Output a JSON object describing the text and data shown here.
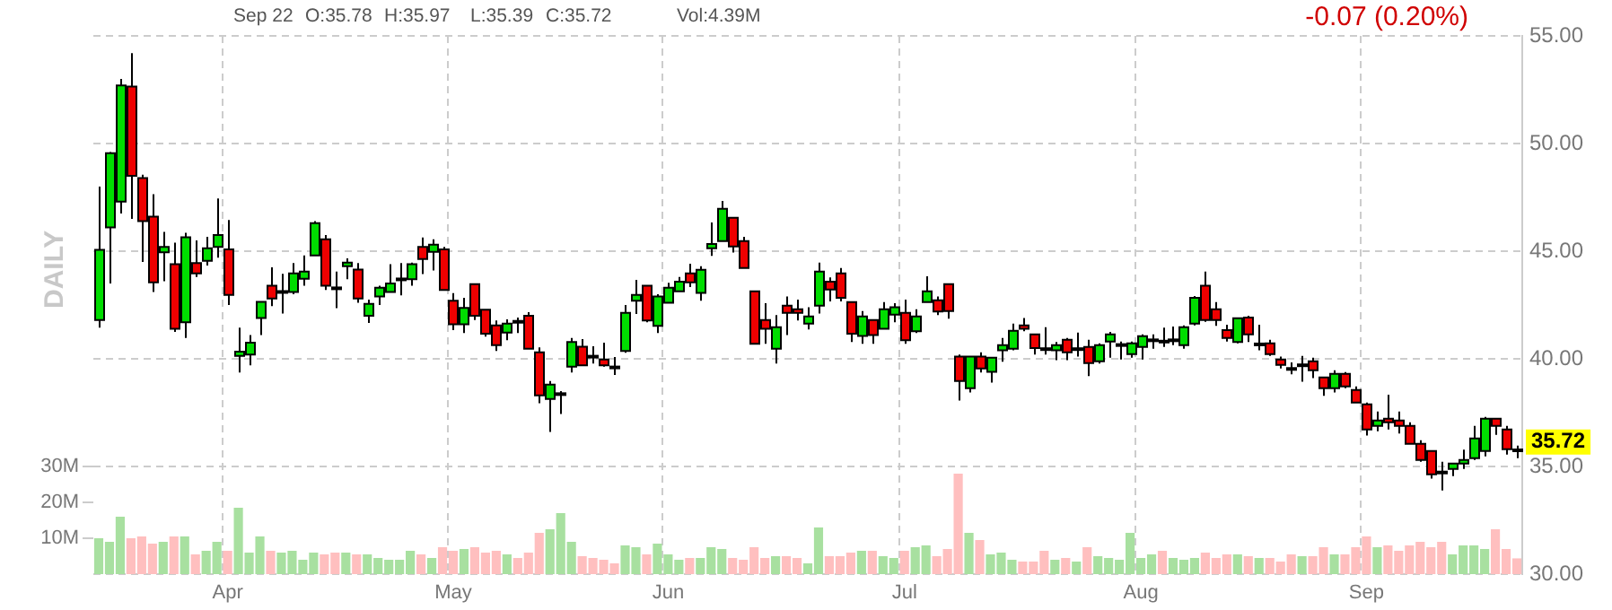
{
  "chart_data": {
    "type": "candlestick",
    "categories": [
      null,
      null,
      null,
      null,
      null,
      null,
      null,
      null,
      null,
      null,
      null,
      null,
      "Apr",
      null,
      null,
      null,
      null,
      null,
      null,
      null,
      null,
      null,
      null,
      null,
      null,
      null,
      null,
      null,
      null,
      null,
      null,
      null,
      null,
      "May",
      null,
      null,
      null,
      null,
      null,
      null,
      null,
      null,
      null,
      null,
      null,
      null,
      null,
      null,
      null,
      null,
      null,
      null,
      null,
      "Jun",
      null,
      null,
      null,
      null,
      null,
      null,
      null,
      null,
      null,
      null,
      null,
      null,
      null,
      null,
      null,
      null,
      null,
      null,
      null,
      null,
      null,
      "Jul",
      null,
      null,
      null,
      null,
      null,
      null,
      null,
      null,
      null,
      null,
      null,
      null,
      null,
      null,
      null,
      null,
      null,
      null,
      null,
      null,
      null,
      "Aug",
      null,
      null,
      null,
      null,
      null,
      null,
      null,
      null,
      null,
      null,
      null,
      null,
      null,
      null,
      null,
      null,
      null,
      null,
      null,
      null,
      "Sep",
      null,
      null,
      null,
      null,
      null,
      null,
      null,
      null,
      null,
      null,
      null,
      null,
      null,
      null
    ],
    "series": [
      {
        "ohlc": [
          [
            41.8,
            48,
            41.45,
            45.06
          ],
          [
            46.1,
            49.6,
            43.5,
            49.55
          ],
          [
            47.3,
            53,
            46.75,
            52.7
          ],
          [
            52.65,
            54.2,
            46.5,
            48.5
          ],
          [
            48.4,
            48.55,
            44.5,
            46.4
          ],
          [
            46.6,
            47.65,
            43.1,
            43.55
          ],
          [
            44.95,
            45.9,
            43.6,
            45.2
          ],
          [
            44.4,
            45.4,
            41.25,
            41.4
          ],
          [
            41.7,
            45.85,
            40.97,
            45.65
          ],
          [
            44.45,
            45.5,
            43.8,
            43.97
          ],
          [
            44.55,
            45.67,
            44.33,
            45.14
          ],
          [
            45.2,
            47.45,
            44.7,
            45.75
          ],
          [
            45.08,
            46.45,
            42.5,
            42.97
          ],
          [
            40.14,
            41.45,
            39.36,
            40.33
          ],
          [
            40.2,
            41.1,
            39.7,
            40.75
          ],
          [
            41.9,
            42.65,
            41.1,
            42.65
          ],
          [
            43.4,
            44.25,
            42.45,
            42.8
          ],
          [
            43.08,
            43.95,
            42.1,
            43.13
          ],
          [
            43.1,
            44.45,
            43,
            43.97
          ],
          [
            43.72,
            44.8,
            43.4,
            44.05
          ],
          [
            44.8,
            46.4,
            44.8,
            46.3
          ],
          [
            45.55,
            45.75,
            43.2,
            43.4
          ],
          [
            43.3,
            44.05,
            42.35,
            43.25
          ],
          [
            44.3,
            44.67,
            43.7,
            44.47
          ],
          [
            44.15,
            44.45,
            42.6,
            42.8
          ],
          [
            42,
            42.75,
            41.67,
            42.55
          ],
          [
            42.9,
            43.4,
            42.5,
            43.3
          ],
          [
            43.1,
            44.4,
            43.1,
            43.5
          ],
          [
            43.68,
            44.45,
            42.95,
            43.7
          ],
          [
            43.7,
            44.47,
            43.4,
            44.4
          ],
          [
            45.2,
            45.64,
            43.94,
            44.64
          ],
          [
            44.97,
            45.55,
            44.1,
            45.3
          ],
          [
            45.08,
            45.2,
            43.2,
            43.2
          ],
          [
            42.7,
            43.05,
            41.33,
            41.6
          ],
          [
            41.6,
            42.83,
            41.2,
            42.36
          ],
          [
            43.47,
            43.47,
            41.8,
            42
          ],
          [
            42.28,
            42.28,
            41.03,
            41.17
          ],
          [
            41.55,
            41.78,
            40.36,
            40.64
          ],
          [
            41.22,
            41.83,
            40.86,
            41.64
          ],
          [
            41.74,
            41.92,
            41.2,
            41.7
          ],
          [
            42,
            42.17,
            40.47,
            40.47
          ],
          [
            40.3,
            40.53,
            37.94,
            38.3
          ],
          [
            38.14,
            38.97,
            36.6,
            38.8
          ],
          [
            38.34,
            38.5,
            37.44,
            38.38
          ],
          [
            39.64,
            40.97,
            39.36,
            40.78
          ],
          [
            40.56,
            40.92,
            39.7,
            39.7
          ],
          [
            40.12,
            40.58,
            39.78,
            40.08
          ],
          [
            39.97,
            40.75,
            39.64,
            39.7
          ],
          [
            39.62,
            40.08,
            39.25,
            39.58
          ],
          [
            40.36,
            42.5,
            40.28,
            42.14
          ],
          [
            42.7,
            43.67,
            42.08,
            42.97
          ],
          [
            43.4,
            43.4,
            41.7,
            41.78
          ],
          [
            41.53,
            43,
            41.2,
            42.9
          ],
          [
            42.6,
            43.53,
            42.6,
            43.3
          ],
          [
            43.14,
            43.8,
            43.14,
            43.58
          ],
          [
            43.97,
            44.42,
            43.33,
            43.55
          ],
          [
            43.06,
            44.3,
            42.7,
            44.14
          ],
          [
            45.14,
            46.33,
            44.78,
            45.33
          ],
          [
            45.47,
            47.33,
            45.47,
            46.97
          ],
          [
            46.55,
            46.55,
            44.94,
            45.22
          ],
          [
            45.47,
            45.67,
            44.22,
            44.22
          ],
          [
            43.14,
            43.14,
            40.7,
            40.7
          ],
          [
            41.8,
            42.58,
            40.7,
            41.4
          ],
          [
            40.47,
            42.03,
            39.78,
            41.47
          ],
          [
            42.47,
            42.9,
            41.1,
            42.14
          ],
          [
            42.3,
            42.75,
            41.78,
            42.14
          ],
          [
            41.64,
            42.4,
            41.36,
            41.97
          ],
          [
            42.47,
            44.47,
            42.1,
            44.05
          ],
          [
            43.58,
            43.78,
            42.67,
            43.22
          ],
          [
            43.97,
            44.22,
            42.67,
            42.83
          ],
          [
            42.64,
            42.64,
            40.78,
            41.17
          ],
          [
            41.06,
            42.22,
            40.7,
            41.97
          ],
          [
            41.8,
            41.8,
            40.7,
            41.1
          ],
          [
            41.4,
            42.64,
            41.4,
            42.3
          ],
          [
            42.05,
            42.58,
            41.7,
            42.4
          ],
          [
            42.14,
            42.75,
            40.7,
            40.86
          ],
          [
            41.28,
            42.3,
            41.2,
            41.97
          ],
          [
            42.64,
            43.83,
            42.64,
            43.14
          ],
          [
            42.72,
            42.9,
            42.03,
            42.2
          ],
          [
            43.47,
            43.47,
            41.86,
            42.22
          ],
          [
            40.1,
            40.2,
            38.06,
            38.97
          ],
          [
            38.64,
            40.1,
            38.44,
            40.1
          ],
          [
            40.1,
            40.3,
            39.36,
            39.55
          ],
          [
            39.4,
            40.05,
            38.9,
            40.05
          ],
          [
            40.4,
            40.97,
            39.86,
            40.64
          ],
          [
            40.47,
            41.64,
            40.4,
            41.3
          ],
          [
            41.55,
            41.9,
            41.28,
            41.4
          ],
          [
            41.14,
            41.14,
            40.2,
            40.5
          ],
          [
            40.47,
            41.47,
            40.2,
            40.43
          ],
          [
            40.4,
            40.78,
            39.94,
            40.64
          ],
          [
            40.89,
            40.97,
            39.94,
            40.3
          ],
          [
            40.43,
            41.22,
            40.1,
            40.47
          ],
          [
            40.55,
            40.89,
            39.2,
            39.8
          ],
          [
            39.89,
            40.72,
            39.78,
            40.64
          ],
          [
            40.8,
            41.25,
            40.05,
            41.14
          ],
          [
            40.62,
            40.8,
            39.97,
            40.66
          ],
          [
            40.22,
            40.8,
            40.05,
            40.72
          ],
          [
            40.55,
            41.14,
            39.97,
            41.05
          ],
          [
            40.84,
            41.14,
            40.47,
            40.88
          ],
          [
            40.82,
            41.45,
            40.55,
            40.78
          ],
          [
            40.84,
            41.5,
            40.64,
            40.88
          ],
          [
            40.64,
            41.55,
            40.47,
            41.47
          ],
          [
            41.64,
            42.92,
            41.55,
            42.83
          ],
          [
            43.4,
            44.05,
            41.72,
            41.8
          ],
          [
            42.3,
            42.64,
            41.53,
            41.8
          ],
          [
            41.33,
            41.58,
            40.8,
            40.97
          ],
          [
            40.78,
            41.89,
            40.72,
            41.89
          ],
          [
            41.92,
            42,
            40.78,
            41.14
          ],
          [
            40.65,
            41.58,
            40.4,
            40.69
          ],
          [
            40.72,
            40.89,
            40.14,
            40.22
          ],
          [
            39.97,
            40.1,
            39.55,
            39.72
          ],
          [
            39.55,
            39.83,
            39.28,
            39.51
          ],
          [
            39.68,
            40.14,
            38.94,
            39.72
          ],
          [
            39.89,
            40.05,
            39.1,
            39.47
          ],
          [
            39.14,
            39.14,
            38.28,
            38.64
          ],
          [
            38.64,
            39.47,
            38.44,
            39.3
          ],
          [
            39.3,
            39.39,
            38.64,
            38.72
          ],
          [
            38.55,
            38.72,
            37.97,
            37.97
          ],
          [
            37.89,
            37.97,
            36.44,
            36.72
          ],
          [
            36.89,
            37.55,
            36.64,
            37.14
          ],
          [
            37.22,
            38.33,
            36.72,
            37.05
          ],
          [
            37.14,
            37.55,
            36.53,
            36.89
          ],
          [
            36.89,
            37.05,
            36.05,
            36.05
          ],
          [
            36.05,
            36.22,
            35.22,
            35.3
          ],
          [
            35.72,
            35.72,
            34.44,
            34.64
          ],
          [
            34.74,
            35.22,
            33.89,
            34.7
          ],
          [
            34.89,
            35.14,
            34.55,
            35.14
          ],
          [
            35.14,
            35.78,
            34.89,
            35.3
          ],
          [
            35.39,
            36.89,
            35.3,
            36.3
          ],
          [
            35.72,
            37.3,
            35.47,
            37.22
          ],
          [
            37.22,
            37.22,
            36.47,
            36.89
          ],
          [
            36.72,
            36.89,
            35.55,
            35.8
          ],
          [
            35.78,
            35.97,
            35.39,
            35.72
          ]
        ],
        "colors": [
          "#00dd00",
          "#00dd00",
          "#00dd00",
          "#ee0000",
          "#ee0000",
          "#ee0000",
          "#00dd00",
          "#ee0000",
          "#00dd00",
          "#ee0000",
          "#00dd00",
          "#00dd00",
          "#ee0000",
          "#00dd00",
          "#00dd00",
          "#00dd00",
          "#ee0000",
          "#00dd00",
          "#00dd00",
          "#00dd00",
          "#00dd00",
          "#ee0000",
          "#ee0000",
          "#00dd00",
          "#ee0000",
          "#00dd00",
          "#00dd00",
          "#00dd00",
          "#00dd00",
          "#00dd00",
          "#ee0000",
          "#00dd00",
          "#ee0000",
          "#ee0000",
          "#00dd00",
          "#ee0000",
          "#ee0000",
          "#ee0000",
          "#00dd00",
          "#ee0000",
          "#ee0000",
          "#ee0000",
          "#00dd00",
          "#00dd00",
          "#00dd00",
          "#ee0000",
          "#ee0000",
          "#ee0000",
          "#ee0000",
          "#00dd00",
          "#00dd00",
          "#ee0000",
          "#00dd00",
          "#00dd00",
          "#00dd00",
          "#ee0000",
          "#00dd00",
          "#00dd00",
          "#00dd00",
          "#ee0000",
          "#ee0000",
          "#ee0000",
          "#ee0000",
          "#00dd00",
          "#ee0000",
          "#ee0000",
          "#00dd00",
          "#00dd00",
          "#ee0000",
          "#ee0000",
          "#ee0000",
          "#00dd00",
          "#ee0000",
          "#00dd00",
          "#00dd00",
          "#ee0000",
          "#00dd00",
          "#00dd00",
          "#ee0000",
          "#ee0000",
          "#ee0000",
          "#00dd00",
          "#ee0000",
          "#00dd00",
          "#00dd00",
          "#00dd00",
          "#ee0000",
          "#ee0000",
          "#ee0000",
          "#00dd00",
          "#ee0000",
          "#00dd00",
          "#ee0000",
          "#00dd00",
          "#00dd00",
          "#00dd00",
          "#00dd00",
          "#00dd00",
          "#00dd00",
          "#ee0000",
          "#00dd00",
          "#00dd00",
          "#00dd00",
          "#ee0000",
          "#ee0000",
          "#ee0000",
          "#00dd00",
          "#ee0000",
          "#00dd00",
          "#ee0000",
          "#ee0000",
          "#ee0000",
          "#00dd00",
          "#ee0000",
          "#ee0000",
          "#00dd00",
          "#ee0000",
          "#ee0000",
          "#ee0000",
          "#00dd00",
          "#ee0000",
          "#ee0000",
          "#ee0000",
          "#ee0000",
          "#ee0000",
          "#ee0000",
          "#00dd00",
          "#00dd00",
          "#00dd00",
          "#00dd00",
          "#ee0000",
          "#ee0000",
          "#ee0000"
        ]
      },
      {
        "type": "bar",
        "axis": "y2",
        "values": [
          10,
          9,
          16,
          10,
          10.5,
          8.5,
          9,
          10.5,
          10.5,
          5.5,
          6.5,
          9,
          6.5,
          18.5,
          6,
          10.5,
          6.5,
          6,
          6.5,
          4,
          6,
          5.5,
          6,
          6,
          5.5,
          5.5,
          4.5,
          4,
          4,
          6.5,
          5.5,
          4.5,
          7.5,
          6.5,
          7,
          7.5,
          6,
          6.5,
          5.5,
          4.5,
          6,
          11.5,
          12.5,
          17,
          9,
          5,
          4.5,
          4,
          3,
          8,
          7.5,
          5.5,
          8.5,
          5.5,
          4,
          4.5,
          4.5,
          7.5,
          7,
          4.5,
          4,
          7.5,
          4.5,
          5,
          5,
          4.5,
          3,
          13,
          5,
          5,
          6,
          6.5,
          6.5,
          5,
          4.5,
          6.5,
          7.5,
          8,
          5,
          7,
          28,
          11.5,
          9.5,
          5.5,
          6,
          4,
          3.5,
          3.5,
          6.5,
          4,
          4.5,
          3.5,
          7.5,
          5,
          4.5,
          4,
          11.5,
          4.5,
          5.5,
          6.5,
          4.5,
          4,
          4.5,
          6,
          4.5,
          5.5,
          5.5,
          5,
          4.5,
          4.5,
          3.5,
          5.5,
          5,
          5,
          7.5,
          5.5,
          5.5,
          7.5,
          10.5,
          7.5,
          8,
          6.5,
          8,
          9,
          7.5,
          9,
          5.5,
          8,
          8,
          7,
          12.5,
          7,
          4.39
        ],
        "colors": [
          "#a8e0a0",
          "#a8e0a0",
          "#a8e0a0",
          "#ffbfbf",
          "#ffbfbf",
          "#ffbfbf",
          "#a8e0a0",
          "#ffbfbf",
          "#a8e0a0",
          "#ffbfbf",
          "#a8e0a0",
          "#a8e0a0",
          "#ffbfbf",
          "#a8e0a0",
          "#a8e0a0",
          "#a8e0a0",
          "#ffbfbf",
          "#a8e0a0",
          "#a8e0a0",
          "#a8e0a0",
          "#a8e0a0",
          "#ffbfbf",
          "#ffbfbf",
          "#a8e0a0",
          "#ffbfbf",
          "#a8e0a0",
          "#a8e0a0",
          "#a8e0a0",
          "#a8e0a0",
          "#a8e0a0",
          "#ffbfbf",
          "#a8e0a0",
          "#ffbfbf",
          "#ffbfbf",
          "#a8e0a0",
          "#ffbfbf",
          "#ffbfbf",
          "#ffbfbf",
          "#a8e0a0",
          "#ffbfbf",
          "#ffbfbf",
          "#ffbfbf",
          "#a8e0a0",
          "#a8e0a0",
          "#a8e0a0",
          "#ffbfbf",
          "#ffbfbf",
          "#ffbfbf",
          "#ffbfbf",
          "#a8e0a0",
          "#a8e0a0",
          "#ffbfbf",
          "#a8e0a0",
          "#a8e0a0",
          "#a8e0a0",
          "#ffbfbf",
          "#a8e0a0",
          "#a8e0a0",
          "#a8e0a0",
          "#ffbfbf",
          "#ffbfbf",
          "#ffbfbf",
          "#ffbfbf",
          "#a8e0a0",
          "#ffbfbf",
          "#ffbfbf",
          "#a8e0a0",
          "#a8e0a0",
          "#ffbfbf",
          "#ffbfbf",
          "#ffbfbf",
          "#a8e0a0",
          "#ffbfbf",
          "#a8e0a0",
          "#a8e0a0",
          "#ffbfbf",
          "#a8e0a0",
          "#a8e0a0",
          "#ffbfbf",
          "#ffbfbf",
          "#ffbfbf",
          "#a8e0a0",
          "#ffbfbf",
          "#a8e0a0",
          "#a8e0a0",
          "#a8e0a0",
          "#ffbfbf",
          "#ffbfbf",
          "#ffbfbf",
          "#a8e0a0",
          "#ffbfbf",
          "#a8e0a0",
          "#ffbfbf",
          "#a8e0a0",
          "#a8e0a0",
          "#a8e0a0",
          "#a8e0a0",
          "#a8e0a0",
          "#a8e0a0",
          "#ffbfbf",
          "#a8e0a0",
          "#a8e0a0",
          "#a8e0a0",
          "#ffbfbf",
          "#ffbfbf",
          "#ffbfbf",
          "#a8e0a0",
          "#ffbfbf",
          "#a8e0a0",
          "#ffbfbf",
          "#ffbfbf",
          "#ffbfbf",
          "#a8e0a0",
          "#ffbfbf",
          "#ffbfbf",
          "#a8e0a0",
          "#ffbfbf",
          "#ffbfbf",
          "#ffbfbf",
          "#a8e0a0",
          "#ffbfbf",
          "#ffbfbf",
          "#ffbfbf",
          "#ffbfbf",
          "#ffbfbf",
          "#ffbfbf",
          "#a8e0a0",
          "#a8e0a0",
          "#a8e0a0",
          "#a8e0a0",
          "#ffbfbf",
          "#ffbfbf",
          "#ffbfbf"
        ]
      }
    ],
    "ylim": [
      30,
      55
    ],
    "yticks": [
      {
        "value": 30,
        "label": "30.00"
      },
      {
        "value": 35,
        "label": "35.00"
      },
      {
        "value": 40,
        "label": "40.00"
      },
      {
        "value": 45,
        "label": "45.00"
      },
      {
        "value": 50,
        "label": "50.00"
      },
      {
        "value": 55,
        "label": "55.00"
      }
    ],
    "y2lim": [
      0,
      150
    ],
    "y2ticks": [
      {
        "value": 10,
        "label": "10M"
      },
      {
        "value": 20,
        "label": "20M"
      },
      {
        "value": 30,
        "label": "30M"
      }
    ],
    "grid": true,
    "legend": false,
    "annotations": [
      "Sep 22",
      "O:35.78",
      "H:35.97",
      "L:35.39",
      "C:35.72",
      "Vol:4.39M",
      "-0.07 (0.20%)",
      "DAILY",
      "35.72"
    ]
  }
}
